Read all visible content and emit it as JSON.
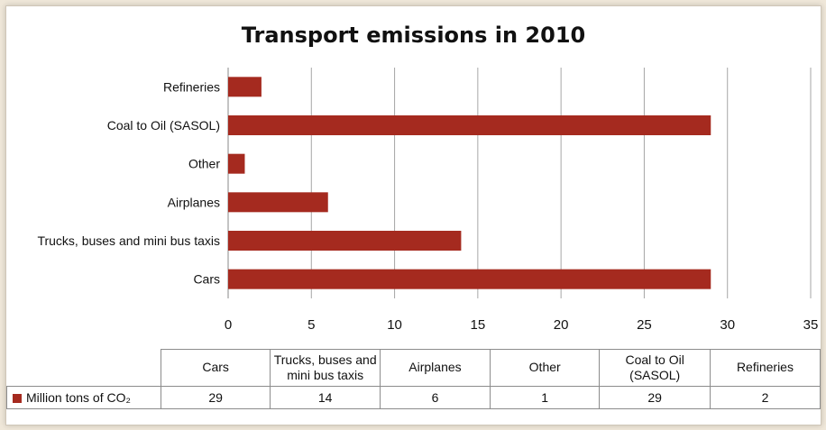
{
  "chart_data": {
    "type": "bar",
    "orientation": "horizontal",
    "title": "Transport emissions in 2010",
    "categories": [
      "Cars",
      "Trucks, buses and mini bus taxis",
      "Airplanes",
      "Other",
      "Coal to Oil (SASOL)",
      "Refineries"
    ],
    "series": [
      {
        "name": "Million tons of CO₂",
        "values": [
          29,
          14,
          6,
          1,
          29,
          2
        ]
      }
    ],
    "xlim": [
      0,
      35
    ],
    "xticks": [
      0,
      5,
      10,
      15,
      20,
      25,
      30,
      35
    ],
    "grid": true,
    "legend": "data table below chart",
    "bar_color": "#a52a1f"
  },
  "table": {
    "headers": [
      "Cars",
      "Trucks, buses and mini bus taxis",
      "Airplanes",
      "Other",
      "Coal to Oil (SASOL)",
      "Refineries"
    ]
  }
}
